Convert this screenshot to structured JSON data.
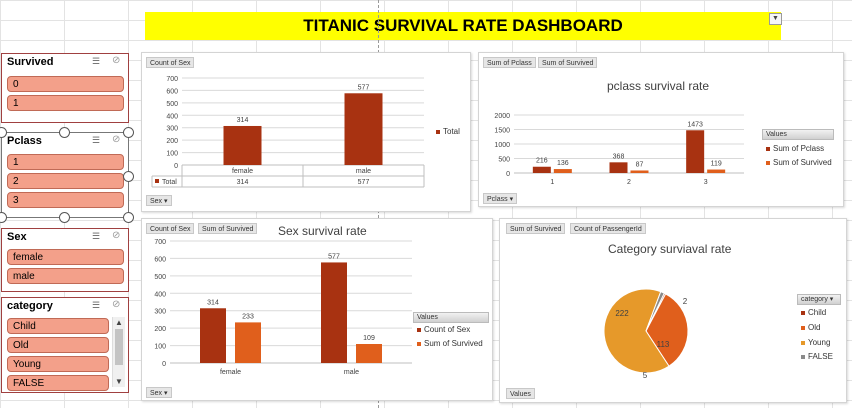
{
  "dashboard": {
    "title": "TITANIC SURVIVAL RATE DASHBOARD"
  },
  "slicers": {
    "survived": {
      "title": "Survived",
      "items": [
        "0",
        "1"
      ]
    },
    "pclass": {
      "title": "Pclass",
      "items": [
        "1",
        "2",
        "3"
      ]
    },
    "sex": {
      "title": "Sex",
      "items": [
        "female",
        "male"
      ]
    },
    "category": {
      "title": "category",
      "items": [
        "Child",
        "Old",
        "Young",
        "FALSE"
      ]
    }
  },
  "colors": {
    "primary": "#a83211",
    "secondary": "#e05f1c",
    "pie_orange": "#e6992a",
    "slicer_item": "#f3a08a",
    "title_bg": "#ffff00"
  },
  "chart1": {
    "field_button": "Count of Sex",
    "axis_button": "Sex",
    "legend": "Total",
    "row_label": "Total",
    "chart_data": {
      "type": "bar",
      "categories": [
        "female",
        "male"
      ],
      "series": [
        {
          "name": "Total",
          "values": [
            314,
            577
          ]
        }
      ],
      "ylim": [
        0,
        700
      ],
      "yticks": [
        "700",
        "600",
        "500",
        "400",
        "300",
        "200",
        "100",
        "0"
      ],
      "table": [
        "314",
        "577"
      ]
    }
  },
  "chart2": {
    "field_buttons": [
      "Sum of Pclass",
      "Sum of Survived"
    ],
    "axis_button": "Pclass",
    "title": "pclass survival rate",
    "legend_header": "Values",
    "chart_data": {
      "type": "bar",
      "categories": [
        "1",
        "2",
        "3"
      ],
      "series": [
        {
          "name": "Sum of Pclass",
          "values": [
            216,
            368,
            1473
          ]
        },
        {
          "name": "Sum of Survived",
          "values": [
            136,
            87,
            119
          ]
        }
      ],
      "ylim": [
        0,
        2000
      ],
      "yticks": [
        "2000",
        "1500",
        "1000",
        "500",
        "0"
      ]
    }
  },
  "chart3": {
    "field_buttons": [
      "Count of Sex",
      "Sum of Survived"
    ],
    "axis_button": "Sex",
    "title": "Sex survival rate",
    "legend_header": "Values",
    "chart_data": {
      "type": "bar",
      "categories": [
        "female",
        "male"
      ],
      "series": [
        {
          "name": "Count of Sex",
          "values": [
            314,
            577
          ]
        },
        {
          "name": "Sum of Survived",
          "values": [
            233,
            109
          ]
        }
      ],
      "ylim": [
        0,
        700
      ],
      "yticks": [
        "700",
        "600",
        "500",
        "400",
        "300",
        "200",
        "100",
        "0"
      ]
    }
  },
  "chart4": {
    "field_buttons": [
      "Sum of Survived",
      "Count of PassengerId"
    ],
    "values_button": "Values",
    "title": "Category surviaval rate",
    "legend_header": "category",
    "chart_data": {
      "type": "pie",
      "categories": [
        "Child",
        "Old",
        "Young",
        "FALSE"
      ],
      "values": [
        2,
        113,
        222,
        5
      ]
    }
  }
}
